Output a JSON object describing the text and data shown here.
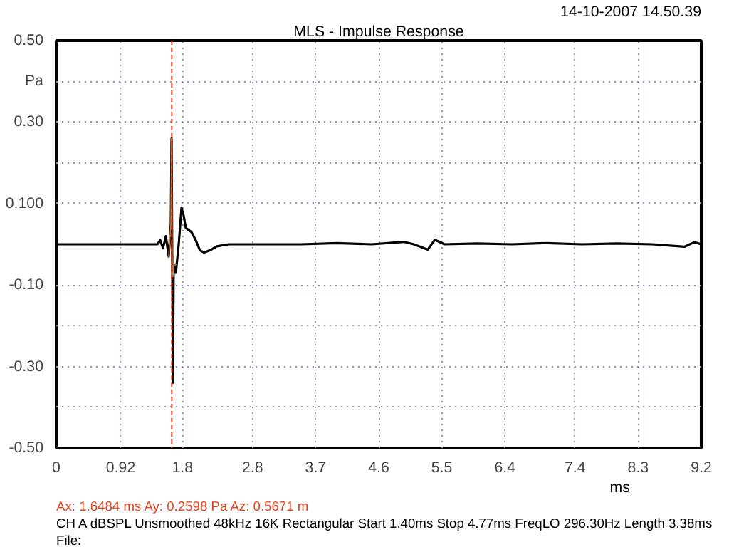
{
  "chart_data": {
    "type": "line",
    "title": "MLS - Impulse Response",
    "xlabel": "ms",
    "ylabel": "Pa",
    "xlim": [
      0,
      9.2
    ],
    "ylim": [
      -0.5,
      0.5
    ],
    "xticks": [
      0,
      0.92,
      1.8,
      2.8,
      3.7,
      4.6,
      5.5,
      6.4,
      7.4,
      8.3,
      9.2
    ],
    "yticks": [
      {
        "value": 0.5,
        "label": "0.50"
      },
      {
        "value": 0.4,
        "label": null
      },
      {
        "value": 0.3,
        "label": "0.30"
      },
      {
        "value": 0.2,
        "label": null
      },
      {
        "value": 0.1,
        "label": "0.100"
      },
      {
        "value": -0.1,
        "label": "-0.10"
      },
      {
        "value": -0.2,
        "label": null
      },
      {
        "value": -0.3,
        "label": "-0.30"
      },
      {
        "value": -0.4,
        "label": null
      },
      {
        "value": -0.5,
        "label": "-0.50"
      }
    ],
    "grid": true,
    "line_style": "solid",
    "marker": "none",
    "x": [
      0,
      0.5,
      1.0,
      1.442,
      1.483,
      1.523,
      1.564,
      1.604,
      1.635,
      1.645,
      1.655,
      1.665,
      1.675,
      1.706,
      1.747,
      1.787,
      1.818,
      1.848,
      1.929,
      1.99,
      2.05,
      2.11,
      2.19,
      2.29,
      2.46,
      3.0,
      3.5,
      4.0,
      4.5,
      4.955,
      5.1,
      5.3,
      5.4,
      5.54,
      6.0,
      6.5,
      7.0,
      7.5,
      8.0,
      8.5,
      8.96,
      9.1,
      9.2
    ],
    "series": [
      {
        "color": "#c8783c",
        "values": [
          null,
          null,
          null,
          null,
          null,
          null,
          null,
          -0.03,
          0.05,
          0.26,
          -0.05,
          -0.08,
          -0.05,
          -0.05,
          null,
          null,
          null,
          null,
          null,
          null,
          null,
          null,
          null,
          null,
          null,
          null,
          null,
          null,
          null,
          null,
          null,
          null,
          null,
          null,
          null,
          null,
          null,
          null,
          null,
          null,
          null,
          null,
          null
        ]
      },
      {
        "color": "#000000",
        "values": [
          0,
          0,
          0,
          0,
          0.01,
          -0.01,
          0.02,
          -0.03,
          0.05,
          0.26,
          -0.05,
          -0.34,
          -0.05,
          -0.07,
          0.0,
          0.09,
          0.07,
          0.04,
          0.03,
          0.01,
          -0.015,
          -0.02,
          -0.015,
          -0.005,
          0,
          0,
          0,
          0.003,
          0,
          0.006,
          0,
          -0.013,
          0.011,
          0,
          0.002,
          0,
          0.003,
          0,
          0.002,
          0,
          -0.006,
          0.005,
          0
        ]
      }
    ],
    "ref_lines": [
      {
        "axis": "x",
        "value": 1.6484,
        "color": "#e8401c",
        "line_style": "dashed"
      }
    ],
    "annotations": [
      "14-10-2007 14.50.39",
      "Ax: 1.6484 ms   Ay: 0.2598 Pa   Az: 0.5671 m",
      "CH A   dBSPL   Unsmoothed   48kHz   16K   Rectangular   Start 1.40ms   Stop 4.77ms   FreqLO 296.30Hz   Length 3.38ms",
      "File:"
    ]
  }
}
